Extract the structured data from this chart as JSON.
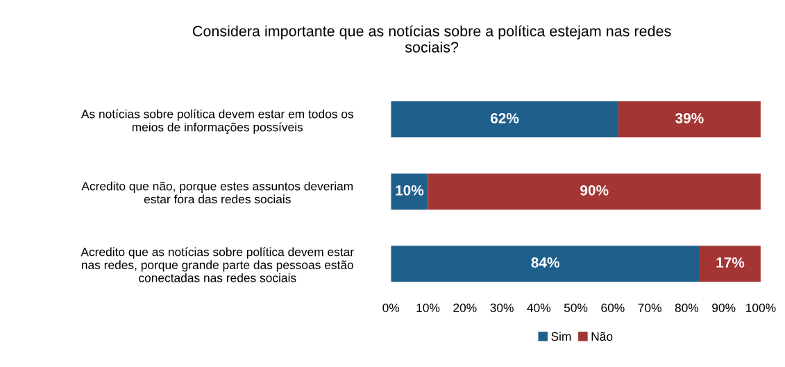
{
  "chart_data": {
    "type": "bar",
    "orientation": "horizontal",
    "stacked": true,
    "title": "Considera importante que as notícias sobre a política estejam nas redes\nsociais?",
    "categories": [
      "As notícias sobre política devem estar em todos os\nmeios de informações possíveis",
      "Acredito que não, porque estes assuntos deveriam\nestar fora das redes sociais",
      "Acredito que as notícias sobre política devem estar\nnas redes, porque grande parte das pessoas estão\nconectadas nas redes sociais"
    ],
    "series": [
      {
        "name": "Sim",
        "color": "#1f5f8b",
        "values": [
          61.5,
          10,
          83.5
        ],
        "value_labels": [
          "62%",
          "10%",
          "84%"
        ]
      },
      {
        "name": "Não",
        "color": "#a33535",
        "values": [
          38.5,
          90,
          16.5
        ],
        "value_labels": [
          "39%",
          "90%",
          "17%"
        ]
      }
    ],
    "xlim": [
      0,
      100
    ],
    "xticks": [
      {
        "value": 0,
        "label": "0%"
      },
      {
        "value": 10,
        "label": "10%"
      },
      {
        "value": 20,
        "label": "20%"
      },
      {
        "value": 30,
        "label": "30%"
      },
      {
        "value": 40,
        "label": "40%"
      },
      {
        "value": 50,
        "label": "50%"
      },
      {
        "value": 60,
        "label": "60%"
      },
      {
        "value": 70,
        "label": "70%"
      },
      {
        "value": 80,
        "label": "80%"
      },
      {
        "value": 90,
        "label": "90%"
      },
      {
        "value": 100,
        "label": "100%"
      }
    ],
    "grid": false,
    "legend": "bottom"
  }
}
